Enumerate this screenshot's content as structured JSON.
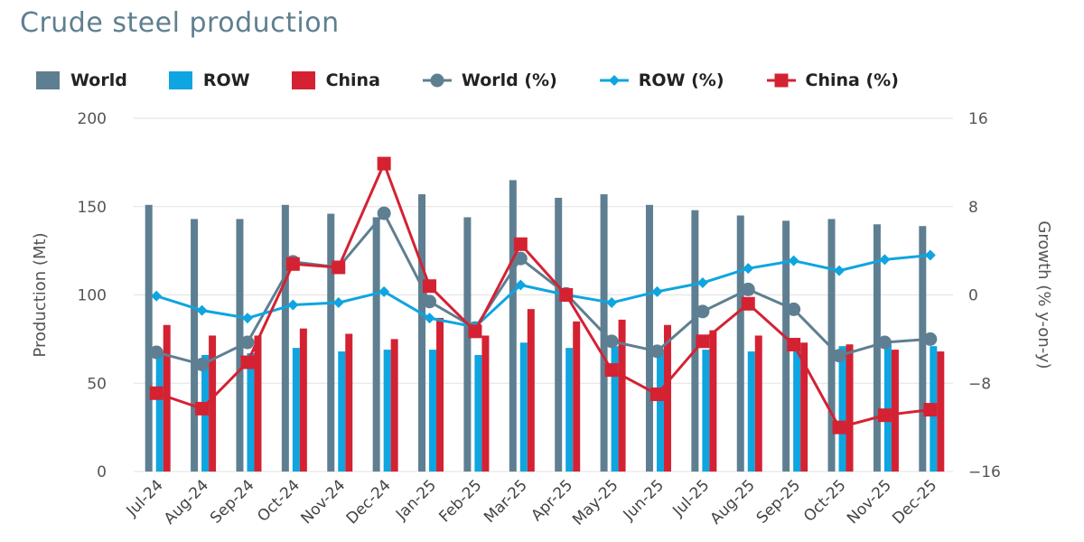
{
  "title": "Crude steel production",
  "colors": {
    "world": "#5e7f91",
    "row": "#0ea5e0",
    "china": "#d42233",
    "grid": "#e2e2e2"
  },
  "legend": [
    {
      "label": "World",
      "kind": "bar",
      "color_key": "world"
    },
    {
      "label": "ROW",
      "kind": "bar",
      "color_key": "row"
    },
    {
      "label": "China",
      "kind": "bar",
      "color_key": "china"
    },
    {
      "label": "World (%)",
      "kind": "line-circle",
      "color_key": "world"
    },
    {
      "label": "ROW (%)",
      "kind": "line-diamond",
      "color_key": "row"
    },
    {
      "label": "China (%)",
      "kind": "line-square",
      "color_key": "china"
    }
  ],
  "chart_data": {
    "type": "bar",
    "title": "Crude steel production",
    "categories": [
      "Jul-24",
      "Aug-24",
      "Sep-24",
      "Oct-24",
      "Nov-24",
      "Dec-24",
      "Jan-25",
      "Feb-25",
      "Mar-25",
      "Apr-25",
      "May-25",
      "Jun-25",
      "Jul-25",
      "Aug-25",
      "Sep-25",
      "Oct-25",
      "Nov-25",
      "Dec-25"
    ],
    "ylabel": "Production (Mt)",
    "y2label": "Growth (% y-on-y)",
    "ylim": [
      0,
      200
    ],
    "y2lim": [
      -16,
      16
    ],
    "yticks": [
      "0",
      "50",
      "100",
      "150",
      "200"
    ],
    "y2ticks": [
      "−16",
      "−8",
      "0",
      "8",
      "16"
    ],
    "grid": true,
    "bar_series": [
      {
        "name": "World",
        "color_key": "world",
        "values": [
          151,
          143,
          143,
          151,
          146,
          144,
          157,
          144,
          165,
          155,
          157,
          151,
          148,
          145,
          142,
          143,
          140,
          139
        ]
      },
      {
        "name": "ROW",
        "color_key": "row",
        "values": [
          68,
          66,
          67,
          70,
          68,
          69,
          69,
          66,
          73,
          70,
          71,
          69,
          69,
          68,
          70,
          71,
          72,
          71
        ]
      },
      {
        "name": "China",
        "color_key": "china",
        "values": [
          83,
          77,
          77,
          81,
          78,
          75,
          87,
          77,
          92,
          85,
          86,
          83,
          80,
          77,
          73,
          72,
          69,
          68
        ]
      }
    ],
    "line_series": [
      {
        "name": "World (%)",
        "color_key": "world",
        "marker": "circle",
        "values": [
          -5.2,
          -6.3,
          -4.3,
          3.0,
          2.5,
          7.4,
          -0.6,
          -3.0,
          3.3,
          0.1,
          -4.2,
          -5.1,
          -1.5,
          0.5,
          -1.3,
          -5.5,
          -4.3,
          -4.0
        ]
      },
      {
        "name": "ROW (%)",
        "color_key": "row",
        "marker": "diamond",
        "values": [
          -0.1,
          -1.4,
          -2.1,
          -0.9,
          -0.7,
          0.3,
          -2.1,
          -2.9,
          0.9,
          0.0,
          -0.7,
          0.3,
          1.1,
          2.4,
          3.1,
          2.2,
          3.2,
          3.6
        ]
      },
      {
        "name": "China (%)",
        "color_key": "china",
        "marker": "square",
        "values": [
          -8.9,
          -10.3,
          -6.1,
          2.8,
          2.5,
          11.9,
          0.8,
          -3.3,
          4.6,
          0.0,
          -6.8,
          -9.0,
          -4.2,
          -0.8,
          -4.5,
          -12.0,
          -10.9,
          -10.4
        ]
      }
    ]
  }
}
